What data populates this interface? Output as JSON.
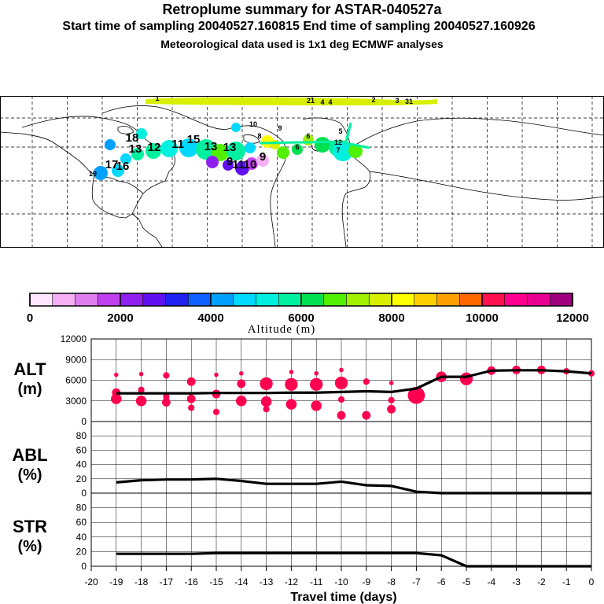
{
  "header": {
    "title": "Retroplume summary for ASTAR-040527a",
    "sampling": "Start time of sampling 20040527.160815      End time of sampling 20040527.160926",
    "met": "Meteorological data used is 1x1 deg ECMWF analyses"
  },
  "colorbar": {
    "label": "Altitude (m)",
    "ticks": [
      "0",
      "2000",
      "4000",
      "6000",
      "8000",
      "10000",
      "12000"
    ],
    "colors": [
      "#ffe6ff",
      "#f5b0f5",
      "#e07ef0",
      "#c040f0",
      "#9020f0",
      "#6010f0",
      "#2020f0",
      "#1060ff",
      "#00a0ff",
      "#00d8ff",
      "#00f0e0",
      "#00f0a0",
      "#00e050",
      "#50f000",
      "#a0f000",
      "#d8f000",
      "#ffff00",
      "#ffd000",
      "#ffa000",
      "#ff6800",
      "#ff1050",
      "#ff0090",
      "#e80090",
      "#a00080"
    ]
  },
  "chart_data": [
    {
      "type": "scatter",
      "title": "ALT",
      "ylabel": "(m)",
      "xlim": [
        -20,
        0
      ],
      "ylim": [
        0,
        12000
      ],
      "yticks": [
        "0",
        "3000",
        "6000",
        "9000",
        "12000"
      ],
      "line_color": "#000000",
      "dot_color": "#ff0050",
      "line": {
        "x": [
          -19,
          -18,
          -17,
          -16,
          -15,
          -14,
          -13,
          -12,
          -11,
          -10,
          -9,
          -8,
          -7,
          -6,
          -5,
          -4,
          -3,
          -2,
          -1,
          0
        ],
        "y": [
          4100,
          4100,
          4100,
          4100,
          4150,
          4150,
          4150,
          4200,
          4200,
          4300,
          4400,
          4300,
          4800,
          6500,
          6500,
          7400,
          7450,
          7450,
          7300,
          7000
        ]
      },
      "points": [
        {
          "x": -19,
          "y": 6800,
          "s": 1
        },
        {
          "x": -19,
          "y": 4200,
          "s": 3
        },
        {
          "x": -19,
          "y": 3300,
          "s": 4
        },
        {
          "x": -18,
          "y": 6900,
          "s": 1
        },
        {
          "x": -18,
          "y": 4600,
          "s": 2
        },
        {
          "x": -18,
          "y": 3000,
          "s": 4
        },
        {
          "x": -17,
          "y": 6700,
          "s": 2
        },
        {
          "x": -17,
          "y": 3600,
          "s": 2
        },
        {
          "x": -17,
          "y": 2800,
          "s": 3
        },
        {
          "x": -16,
          "y": 5800,
          "s": 3
        },
        {
          "x": -16,
          "y": 3300,
          "s": 3
        },
        {
          "x": -16,
          "y": 2000,
          "s": 2
        },
        {
          "x": -15,
          "y": 6800,
          "s": 1
        },
        {
          "x": -15,
          "y": 4000,
          "s": 3
        },
        {
          "x": -15,
          "y": 1400,
          "s": 2
        },
        {
          "x": -14,
          "y": 5500,
          "s": 3
        },
        {
          "x": -14,
          "y": 3000,
          "s": 4
        },
        {
          "x": -14,
          "y": 7000,
          "s": 1
        },
        {
          "x": -13,
          "y": 5500,
          "s": 5
        },
        {
          "x": -13,
          "y": 2900,
          "s": 4
        },
        {
          "x": -13,
          "y": 1800,
          "s": 2
        },
        {
          "x": -12,
          "y": 5400,
          "s": 5
        },
        {
          "x": -12,
          "y": 2500,
          "s": 4
        },
        {
          "x": -12,
          "y": 7200,
          "s": 1
        },
        {
          "x": -11,
          "y": 5400,
          "s": 5
        },
        {
          "x": -11,
          "y": 2300,
          "s": 4
        },
        {
          "x": -11,
          "y": 7000,
          "s": 1
        },
        {
          "x": -10,
          "y": 5600,
          "s": 5
        },
        {
          "x": -10,
          "y": 7500,
          "s": 1
        },
        {
          "x": -10,
          "y": 3200,
          "s": 2
        },
        {
          "x": -10,
          "y": 900,
          "s": 3
        },
        {
          "x": -9,
          "y": 5800,
          "s": 2
        },
        {
          "x": -9,
          "y": 900,
          "s": 3
        },
        {
          "x": -8,
          "y": 3100,
          "s": 2
        },
        {
          "x": -8,
          "y": 1800,
          "s": 3
        },
        {
          "x": -8,
          "y": 5600,
          "s": 1
        },
        {
          "x": -7,
          "y": 3800,
          "s": 7
        },
        {
          "x": -6,
          "y": 6500,
          "s": 4
        },
        {
          "x": -5,
          "y": 6200,
          "s": 5
        },
        {
          "x": -4,
          "y": 7400,
          "s": 3
        },
        {
          "x": -3,
          "y": 7500,
          "s": 3
        },
        {
          "x": -2,
          "y": 7500,
          "s": 3
        },
        {
          "x": -1,
          "y": 7300,
          "s": 2
        },
        {
          "x": 0,
          "y": 7000,
          "s": 2
        }
      ]
    },
    {
      "type": "line",
      "title": "ABL",
      "ylabel": "(%)",
      "xlim": [
        -20,
        0
      ],
      "ylim": [
        0,
        100
      ],
      "yticks": [
        "0",
        "20",
        "40",
        "60",
        "80"
      ],
      "x": [
        -19,
        -18,
        -17,
        -16,
        -15,
        -14,
        -13,
        -12,
        -11,
        -10,
        -9,
        -8,
        -7,
        -6,
        -5,
        -4,
        -3,
        -2,
        -1,
        0
      ],
      "y": [
        15,
        18,
        19,
        19,
        20,
        17,
        13,
        13,
        13,
        16,
        11,
        10,
        2,
        0,
        0,
        0,
        0,
        0,
        0,
        0
      ]
    },
    {
      "type": "line",
      "title": "STR",
      "ylabel": "(%)",
      "xlim": [
        -20,
        0
      ],
      "ylim": [
        0,
        100
      ],
      "yticks": [
        "0",
        "20",
        "40",
        "60",
        "80"
      ],
      "xticks": [
        "-20",
        "-19",
        "-18",
        "-17",
        "-16",
        "-15",
        "-14",
        "-13",
        "-12",
        "-11",
        "-10",
        "-9",
        "-8",
        "-7",
        "-6",
        "-5",
        "-4",
        "-3",
        "-2",
        "-1",
        "0"
      ],
      "xlabel": "Travel time (days)",
      "x": [
        -19,
        -18,
        -17,
        -16,
        -15,
        -14,
        -13,
        -12,
        -11,
        -10,
        -9,
        -8,
        -7,
        -6,
        -5,
        -4,
        -3,
        -2,
        -1,
        0
      ],
      "y": [
        17,
        17,
        17,
        17,
        18,
        18,
        18,
        18,
        18,
        18,
        18,
        18,
        18,
        15,
        0,
        0,
        0,
        0,
        0,
        0
      ]
    }
  ],
  "map": {
    "labels": [
      {
        "t": "1",
        "c": "#e0f000"
      },
      {
        "t": "21",
        "c": "#d8f000"
      },
      {
        "t": "4",
        "c": "#d8f000"
      },
      {
        "t": "4",
        "c": "#d8f000"
      },
      {
        "t": "31",
        "c": "#d8f000"
      },
      {
        "t": "3",
        "c": "#d8f000"
      },
      {
        "t": "2",
        "c": "#d8f000"
      },
      {
        "t": "18",
        "c": "#00c0ff"
      },
      {
        "t": "17",
        "c": "#1080ff"
      },
      {
        "t": "16",
        "c": "#00a0ff"
      },
      {
        "t": "13",
        "c": "#00e0d0"
      },
      {
        "t": "12",
        "c": "#00f0b0"
      },
      {
        "t": "11",
        "c": "#00f0c0"
      },
      {
        "t": "15",
        "c": "#00d0ff"
      },
      {
        "t": "13",
        "c": "#00e0e0"
      },
      {
        "t": "13",
        "c": "#00d8c0"
      },
      {
        "t": "9",
        "c": "#3050ff"
      },
      {
        "t": "11",
        "c": "#a040f0"
      },
      {
        "t": "10",
        "c": "#c060f0"
      },
      {
        "t": "9",
        "c": "#f0c0f8"
      },
      {
        "t": "9",
        "c": "#a0f000"
      },
      {
        "t": "6",
        "c": "#50f000"
      },
      {
        "t": "6",
        "c": "#c040f0"
      },
      {
        "t": "7",
        "c": "#00c0ff"
      },
      {
        "t": "5",
        "c": "#50f000"
      },
      {
        "t": "19",
        "c": "#1070ff"
      },
      {
        "t": "12",
        "c": "#a0f000"
      },
      {
        "t": "8",
        "c": "#00e050"
      },
      {
        "t": "10",
        "c": "#d8f000"
      }
    ]
  }
}
